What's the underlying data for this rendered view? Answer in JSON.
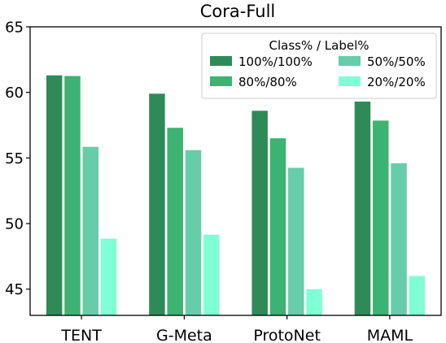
{
  "chart_data": {
    "type": "bar",
    "title": "Cora-Full",
    "xlabel": "",
    "ylabel": "",
    "ylim": [
      43,
      65
    ],
    "yticks": [
      45,
      50,
      55,
      60,
      65
    ],
    "grid": false,
    "categories": [
      "TENT",
      "G-Meta",
      "ProtoNet",
      "MAML"
    ],
    "legend": {
      "title": "Class% / Label%",
      "placement": "top-right",
      "columns": 2
    },
    "series": [
      {
        "name": "100%/100%",
        "color": "#2e8b57",
        "values": [
          61.3,
          59.9,
          58.6,
          59.3
        ]
      },
      {
        "name": "80%/80%",
        "color": "#3cb371",
        "values": [
          61.25,
          57.3,
          56.5,
          57.85
        ]
      },
      {
        "name": "50%/50%",
        "color": "#66cdaa",
        "values": [
          55.85,
          55.6,
          54.25,
          54.6
        ]
      },
      {
        "name": "20%/20%",
        "color": "#7fffd4",
        "values": [
          48.85,
          49.15,
          45.0,
          46.0
        ]
      }
    ]
  }
}
